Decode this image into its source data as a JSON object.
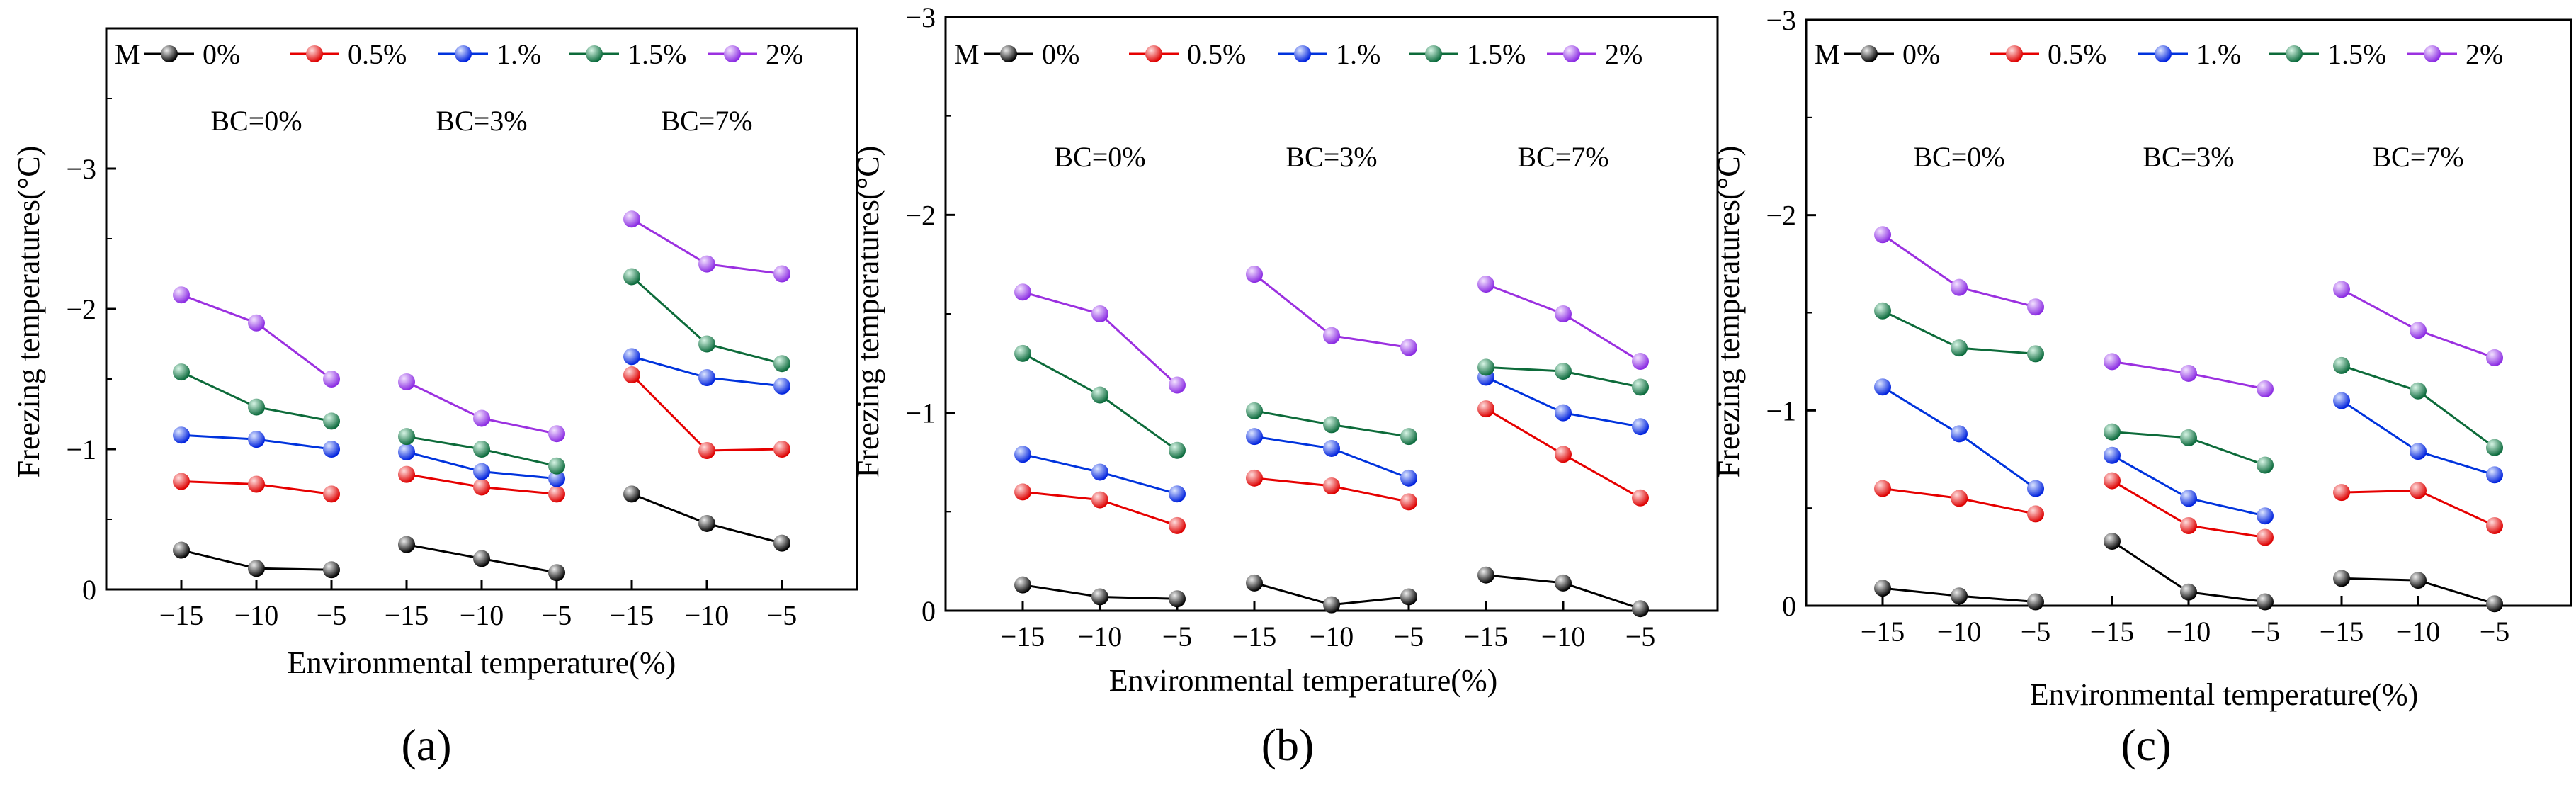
{
  "figure_labels": [
    "(a)",
    "(b)",
    "(c)"
  ],
  "legend": {
    "title": "M",
    "entries": [
      {
        "label": "0%",
        "color": "#555555"
      },
      {
        "label": "0.5%",
        "color": "#ee2222"
      },
      {
        "label": "1.%",
        "color": "#1144dd"
      },
      {
        "label": "1.5%",
        "color": "#159a5f"
      },
      {
        "label": "2%",
        "color": "#b366e6"
      }
    ]
  },
  "chart_data": [
    {
      "type": "line",
      "panel": "(a)",
      "xlabel": "Environmental temperature(%)",
      "ylabel": "Freezing temperatures(°C)",
      "ylim": [
        0,
        -4
      ],
      "yticks": [
        0,
        -1,
        -2,
        -3
      ],
      "ytick_labels": [
        "0",
        "−1",
        "−2",
        "−3"
      ],
      "xtick_labels": [
        "−15",
        "−10",
        "−5",
        "−15",
        "−10",
        "−5",
        "−15",
        "−10",
        "−5"
      ],
      "groups": [
        {
          "label": "BC=0%",
          "x": [
            -15,
            -10,
            -5
          ],
          "series": [
            {
              "name": "0%",
              "values": [
                -0.28,
                -0.15,
                -0.14
              ]
            },
            {
              "name": "0.5%",
              "values": [
                -0.77,
                -0.75,
                -0.68
              ]
            },
            {
              "name": "1.%",
              "values": [
                -1.1,
                -1.07,
                -1.0
              ]
            },
            {
              "name": "1.5%",
              "values": [
                -1.55,
                -1.3,
                -1.2
              ]
            },
            {
              "name": "2%",
              "values": [
                -2.1,
                -1.9,
                -1.5
              ]
            }
          ]
        },
        {
          "label": "BC=3%",
          "x": [
            -15,
            -10,
            -5
          ],
          "series": [
            {
              "name": "0%",
              "values": [
                -0.32,
                -0.22,
                -0.12
              ]
            },
            {
              "name": "0.5%",
              "values": [
                -0.82,
                -0.73,
                -0.68
              ]
            },
            {
              "name": "1.%",
              "values": [
                -0.98,
                -0.84,
                -0.79
              ]
            },
            {
              "name": "1.5%",
              "values": [
                -1.09,
                -1.0,
                -0.88
              ]
            },
            {
              "name": "2%",
              "values": [
                -1.48,
                -1.22,
                -1.11
              ]
            }
          ]
        },
        {
          "label": "BC=7%",
          "x": [
            -15,
            -10,
            -5
          ],
          "series": [
            {
              "name": "0%",
              "values": [
                -0.68,
                -0.47,
                -0.33
              ]
            },
            {
              "name": "0.5%",
              "values": [
                -1.53,
                -0.99,
                -1.0
              ]
            },
            {
              "name": "1.%",
              "values": [
                -1.66,
                -1.51,
                -1.45
              ]
            },
            {
              "name": "1.5%",
              "values": [
                -2.23,
                -1.75,
                -1.61
              ]
            },
            {
              "name": "2%",
              "values": [
                -2.64,
                -2.32,
                -2.25
              ]
            }
          ]
        }
      ]
    },
    {
      "type": "line",
      "panel": "(b)",
      "xlabel": "Environmental temperature(%)",
      "ylabel": "Freezing temperatures(°C)",
      "ylim": [
        0,
        -3
      ],
      "yticks": [
        0,
        -1,
        -2,
        -3
      ],
      "ytick_labels": [
        "0",
        "−1",
        "−2",
        "−3"
      ],
      "xtick_labels": [
        "−15",
        "−10",
        "−5",
        "−15",
        "−10",
        "−5",
        "−15",
        "−10",
        "−5"
      ],
      "groups": [
        {
          "label": "BC=0%",
          "x": [
            -15,
            -10,
            -5
          ],
          "series": [
            {
              "name": "0%",
              "values": [
                -0.13,
                -0.07,
                -0.06
              ]
            },
            {
              "name": "0.5%",
              "values": [
                -0.6,
                -0.56,
                -0.43
              ]
            },
            {
              "name": "1.%",
              "values": [
                -0.79,
                -0.7,
                -0.59
              ]
            },
            {
              "name": "1.5%",
              "values": [
                -1.3,
                -1.09,
                -0.81
              ]
            },
            {
              "name": "2%",
              "values": [
                -1.61,
                -1.5,
                -1.14
              ]
            }
          ]
        },
        {
          "label": "BC=3%",
          "x": [
            -15,
            -10,
            -5
          ],
          "series": [
            {
              "name": "0%",
              "values": [
                -0.14,
                -0.03,
                -0.07
              ]
            },
            {
              "name": "0.5%",
              "values": [
                -0.67,
                -0.63,
                -0.55
              ]
            },
            {
              "name": "1.%",
              "values": [
                -0.88,
                -0.82,
                -0.67
              ]
            },
            {
              "name": "1.5%",
              "values": [
                -1.01,
                -0.94,
                -0.88
              ]
            },
            {
              "name": "2%",
              "values": [
                -1.7,
                -1.39,
                -1.33
              ]
            }
          ]
        },
        {
          "label": "BC=7%",
          "x": [
            -15,
            -10,
            -5
          ],
          "series": [
            {
              "name": "0%",
              "values": [
                -0.18,
                -0.14,
                -0.01
              ]
            },
            {
              "name": "0.5%",
              "values": [
                -1.02,
                -0.79,
                -0.57
              ]
            },
            {
              "name": "1.%",
              "values": [
                -1.18,
                -1.0,
                -0.93
              ]
            },
            {
              "name": "1.5%",
              "values": [
                -1.23,
                -1.21,
                -1.13
              ]
            },
            {
              "name": "2%",
              "values": [
                -1.65,
                -1.5,
                -1.26
              ]
            }
          ]
        }
      ]
    },
    {
      "type": "line",
      "panel": "(c)",
      "xlabel": "Environmental temperature(%)",
      "ylabel": "Freezing temperatures(°C)",
      "ylim": [
        0,
        -3
      ],
      "yticks": [
        0,
        -1,
        -2,
        -3
      ],
      "ytick_labels": [
        "0",
        "−1",
        "−2",
        "−3"
      ],
      "xtick_labels": [
        "−15",
        "−10",
        "−5",
        "−15",
        "−10",
        "−5",
        "−15",
        "−10",
        "−5"
      ],
      "groups": [
        {
          "label": "BC=0%",
          "x": [
            -15,
            -10,
            -5
          ],
          "series": [
            {
              "name": "0%",
              "values": [
                -0.09,
                -0.05,
                -0.02
              ]
            },
            {
              "name": "0.5%",
              "values": [
                -0.6,
                -0.55,
                -0.47
              ]
            },
            {
              "name": "1.%",
              "values": [
                -1.12,
                -0.88,
                -0.6
              ]
            },
            {
              "name": "1.5%",
              "values": [
                -1.51,
                -1.32,
                -1.29
              ]
            },
            {
              "name": "2%",
              "values": [
                -1.9,
                -1.63,
                -1.53
              ]
            }
          ]
        },
        {
          "label": "BC=3%",
          "x": [
            -15,
            -10,
            -5
          ],
          "series": [
            {
              "name": "0%",
              "values": [
                -0.33,
                -0.07,
                -0.02
              ]
            },
            {
              "name": "0.5%",
              "values": [
                -0.64,
                -0.41,
                -0.35
              ]
            },
            {
              "name": "1.%",
              "values": [
                -0.77,
                -0.55,
                -0.46
              ]
            },
            {
              "name": "1.5%",
              "values": [
                -0.89,
                -0.86,
                -0.72
              ]
            },
            {
              "name": "2%",
              "values": [
                -1.25,
                -1.19,
                -1.11
              ]
            }
          ]
        },
        {
          "label": "BC=7%",
          "x": [
            -15,
            -10,
            -5
          ],
          "series": [
            {
              "name": "0%",
              "values": [
                -0.14,
                -0.13,
                -0.01
              ]
            },
            {
              "name": "0.5%",
              "values": [
                -0.58,
                -0.59,
                -0.41
              ]
            },
            {
              "name": "1.%",
              "values": [
                -1.05,
                -0.79,
                -0.67
              ]
            },
            {
              "name": "1.5%",
              "values": [
                -1.23,
                -1.1,
                -0.81
              ]
            },
            {
              "name": "2%",
              "values": [
                -1.62,
                -1.41,
                -1.27
              ]
            }
          ]
        }
      ]
    }
  ]
}
